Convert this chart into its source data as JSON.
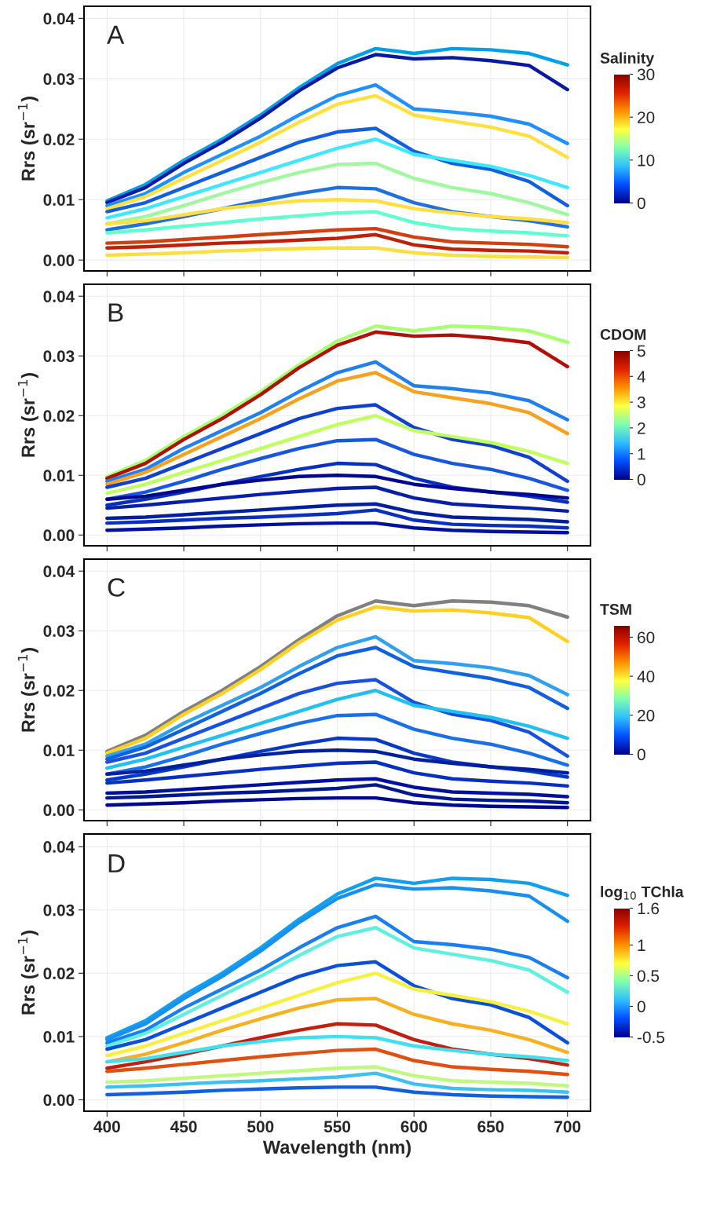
{
  "chart_data": [
    {
      "type": "line",
      "annotations": [
        "A"
      ],
      "ylabel": "Rrs (sr$^{−1}$)",
      "clabel": "Salinity",
      "clim": [
        0,
        30
      ],
      "cticks": [
        0,
        10,
        20,
        30
      ],
      "xlim": [
        385,
        715
      ],
      "xticks": [
        400,
        450,
        500,
        550,
        600,
        650,
        700
      ],
      "ylim": [
        -0.0018,
        0.042
      ],
      "yticks": [
        {
          "value": 0,
          "label": "0.00"
        },
        {
          "value": 0.01,
          "label": "0.01"
        },
        {
          "value": 0.02,
          "label": "0.02"
        },
        {
          "value": 0.03,
          "label": "0.03"
        },
        {
          "value": 0.04,
          "label": "0.04"
        }
      ],
      "grid": true,
      "tick_labels": "y",
      "x": [
        400,
        425,
        450,
        475,
        500,
        525,
        550,
        575,
        600,
        625,
        650,
        675,
        700
      ],
      "series": [
        {
          "color": "#00a0e8",
          "values": [
            0.0098,
            0.0125,
            0.0165,
            0.02,
            0.024,
            0.0285,
            0.0325,
            0.035,
            0.0342,
            0.035,
            0.0348,
            0.0342,
            0.0323
          ]
        },
        {
          "color": "#0a1aa0",
          "values": [
            0.0095,
            0.012,
            0.016,
            0.0195,
            0.0235,
            0.028,
            0.0318,
            0.034,
            0.0333,
            0.0335,
            0.033,
            0.0322,
            0.0282
          ]
        },
        {
          "color": "#1e90ff",
          "values": [
            0.009,
            0.011,
            0.0145,
            0.0175,
            0.0205,
            0.024,
            0.0272,
            0.029,
            0.025,
            0.0245,
            0.0238,
            0.0225,
            0.0193
          ]
        },
        {
          "color": "#ffe040",
          "values": [
            0.0085,
            0.0105,
            0.0135,
            0.0165,
            0.0195,
            0.0228,
            0.0258,
            0.0272,
            0.024,
            0.023,
            0.022,
            0.0205,
            0.017
          ]
        },
        {
          "color": "#1060e0",
          "values": [
            0.008,
            0.0095,
            0.012,
            0.0145,
            0.017,
            0.0195,
            0.0212,
            0.0218,
            0.018,
            0.016,
            0.015,
            0.013,
            0.009
          ]
        },
        {
          "color": "#40e8ff",
          "values": [
            0.007,
            0.0085,
            0.0105,
            0.0125,
            0.0145,
            0.0165,
            0.0185,
            0.02,
            0.0175,
            0.0165,
            0.0155,
            0.014,
            0.012
          ]
        },
        {
          "color": "#a0f8a0",
          "values": [
            0.006,
            0.0072,
            0.009,
            0.011,
            0.0128,
            0.0145,
            0.0158,
            0.016,
            0.0135,
            0.012,
            0.011,
            0.0095,
            0.0075
          ]
        },
        {
          "color": "#2070e0",
          "values": [
            0.005,
            0.006,
            0.0072,
            0.0085,
            0.0098,
            0.011,
            0.012,
            0.0118,
            0.0095,
            0.008,
            0.0072,
            0.0065,
            0.0055
          ]
        },
        {
          "color": "#ffe040",
          "values": [
            0.006,
            0.0065,
            0.0075,
            0.0085,
            0.0092,
            0.0098,
            0.01,
            0.0098,
            0.0085,
            0.0078,
            0.0072,
            0.0068,
            0.0062
          ]
        },
        {
          "color": "#60ffd0",
          "values": [
            0.0045,
            0.005,
            0.0056,
            0.0062,
            0.0068,
            0.0073,
            0.0078,
            0.008,
            0.0062,
            0.0052,
            0.0048,
            0.0045,
            0.004
          ]
        },
        {
          "color": "#d04010",
          "values": [
            0.0028,
            0.003,
            0.0034,
            0.0038,
            0.0042,
            0.0046,
            0.005,
            0.0052,
            0.0038,
            0.003,
            0.0028,
            0.0026,
            0.0022
          ]
        },
        {
          "color": "#c02008",
          "values": [
            0.002,
            0.0022,
            0.0025,
            0.0028,
            0.003,
            0.0033,
            0.0036,
            0.0042,
            0.0025,
            0.0018,
            0.0016,
            0.0015,
            0.0012
          ]
        },
        {
          "color": "#f8e040",
          "values": [
            0.0008,
            0.001,
            0.0012,
            0.0015,
            0.0017,
            0.0019,
            0.002,
            0.002,
            0.0012,
            0.0008,
            0.0006,
            0.0005,
            0.0004
          ]
        }
      ]
    },
    {
      "type": "line",
      "annotations": [
        "B"
      ],
      "ylabel": "Rrs (sr$^{−1}$)",
      "clabel": "CDOM",
      "clim": [
        0,
        5
      ],
      "cticks": [
        0,
        1,
        2,
        3,
        4,
        5
      ],
      "xlim": [
        385,
        715
      ],
      "xticks": [
        400,
        450,
        500,
        550,
        600,
        650,
        700
      ],
      "ylim": [
        -0.0018,
        0.042
      ],
      "yticks": [
        {
          "value": 0,
          "label": "0.00"
        },
        {
          "value": 0.01,
          "label": "0.01"
        },
        {
          "value": 0.02,
          "label": "0.02"
        },
        {
          "value": 0.03,
          "label": "0.03"
        },
        {
          "value": 0.04,
          "label": "0.04"
        }
      ],
      "grid": true,
      "tick_labels": "y",
      "x": [
        400,
        425,
        450,
        475,
        500,
        525,
        550,
        575,
        600,
        625,
        650,
        675,
        700
      ],
      "series": [
        {
          "color": "#a8ff70",
          "values": [
            0.0098,
            0.0125,
            0.0165,
            0.02,
            0.024,
            0.0285,
            0.0325,
            0.035,
            0.0342,
            0.035,
            0.0348,
            0.0342,
            0.0323
          ]
        },
        {
          "color": "#b01008",
          "values": [
            0.0095,
            0.012,
            0.016,
            0.0195,
            0.0235,
            0.028,
            0.0318,
            0.034,
            0.0333,
            0.0335,
            0.033,
            0.0322,
            0.0282
          ]
        },
        {
          "color": "#2080f0",
          "values": [
            0.009,
            0.011,
            0.0145,
            0.0175,
            0.0205,
            0.024,
            0.0272,
            0.029,
            0.025,
            0.0245,
            0.0238,
            0.0225,
            0.0193
          ]
        },
        {
          "color": "#f8a020",
          "values": [
            0.0085,
            0.0105,
            0.0135,
            0.0165,
            0.0195,
            0.0228,
            0.0258,
            0.0272,
            0.024,
            0.023,
            0.022,
            0.0205,
            0.017
          ]
        },
        {
          "color": "#1040d0",
          "values": [
            0.008,
            0.0095,
            0.012,
            0.0145,
            0.017,
            0.0195,
            0.0212,
            0.0218,
            0.018,
            0.016,
            0.015,
            0.013,
            0.009
          ]
        },
        {
          "color": "#c0ff60",
          "values": [
            0.007,
            0.0085,
            0.0105,
            0.0125,
            0.0145,
            0.0165,
            0.0185,
            0.02,
            0.0175,
            0.0165,
            0.0155,
            0.014,
            0.012
          ]
        },
        {
          "color": "#1858e0",
          "values": [
            0.006,
            0.0072,
            0.009,
            0.011,
            0.0128,
            0.0145,
            0.0158,
            0.016,
            0.0135,
            0.012,
            0.011,
            0.0095,
            0.0075
          ]
        },
        {
          "color": "#0830c0",
          "values": [
            0.005,
            0.006,
            0.0072,
            0.0085,
            0.0098,
            0.011,
            0.012,
            0.0118,
            0.0095,
            0.008,
            0.0072,
            0.0065,
            0.0055
          ]
        },
        {
          "color": "#000890",
          "values": [
            0.006,
            0.0065,
            0.0075,
            0.0085,
            0.0092,
            0.0098,
            0.01,
            0.0098,
            0.0085,
            0.0078,
            0.0072,
            0.0068,
            0.0062
          ]
        },
        {
          "color": "#0820a8",
          "values": [
            0.0045,
            0.005,
            0.0056,
            0.0062,
            0.0068,
            0.0073,
            0.0078,
            0.008,
            0.0062,
            0.0052,
            0.0048,
            0.0045,
            0.004
          ]
        },
        {
          "color": "#0020a0",
          "values": [
            0.0028,
            0.003,
            0.0034,
            0.0038,
            0.0042,
            0.0046,
            0.005,
            0.0052,
            0.0038,
            0.003,
            0.0028,
            0.0026,
            0.0022
          ]
        },
        {
          "color": "#0a30c0",
          "values": [
            0.002,
            0.0022,
            0.0025,
            0.0028,
            0.003,
            0.0033,
            0.0036,
            0.0042,
            0.0025,
            0.0018,
            0.0016,
            0.0015,
            0.0012
          ]
        },
        {
          "color": "#0010a0",
          "values": [
            0.0008,
            0.001,
            0.0012,
            0.0015,
            0.0017,
            0.0019,
            0.002,
            0.002,
            0.0012,
            0.0008,
            0.0006,
            0.0005,
            0.0004
          ]
        }
      ]
    },
    {
      "type": "line",
      "annotations": [
        "C"
      ],
      "ylabel": "Rrs (sr$^{−1}$)",
      "clabel": "TSM",
      "clim": [
        0,
        66
      ],
      "cticks": [
        0,
        20,
        40,
        60
      ],
      "xlim": [
        385,
        715
      ],
      "xticks": [
        400,
        450,
        500,
        550,
        600,
        650,
        700
      ],
      "ylim": [
        -0.0018,
        0.042
      ],
      "yticks": [
        {
          "value": 0,
          "label": "0.00"
        },
        {
          "value": 0.01,
          "label": "0.01"
        },
        {
          "value": 0.02,
          "label": "0.02"
        },
        {
          "value": 0.03,
          "label": "0.03"
        },
        {
          "value": 0.04,
          "label": "0.04"
        }
      ],
      "grid": true,
      "tick_labels": "y",
      "x": [
        400,
        425,
        450,
        475,
        500,
        525,
        550,
        575,
        600,
        625,
        650,
        675,
        700
      ],
      "series": [
        {
          "color": "#808080",
          "values": [
            0.0098,
            0.0125,
            0.0165,
            0.02,
            0.024,
            0.0285,
            0.0325,
            0.035,
            0.0342,
            0.035,
            0.0348,
            0.0342,
            0.0323
          ]
        },
        {
          "color": "#ffd020",
          "values": [
            0.0095,
            0.012,
            0.016,
            0.0195,
            0.0235,
            0.028,
            0.0318,
            0.034,
            0.0333,
            0.0335,
            0.033,
            0.0322,
            0.0282
          ]
        },
        {
          "color": "#30a0f0",
          "values": [
            0.009,
            0.011,
            0.0145,
            0.0175,
            0.0205,
            0.024,
            0.0272,
            0.029,
            0.025,
            0.0245,
            0.0238,
            0.0225,
            0.0193
          ]
        },
        {
          "color": "#1060e0",
          "values": [
            0.0085,
            0.0105,
            0.0135,
            0.0165,
            0.0195,
            0.0228,
            0.0258,
            0.0272,
            0.024,
            0.023,
            0.022,
            0.0205,
            0.017
          ]
        },
        {
          "color": "#1850e0",
          "values": [
            0.008,
            0.0095,
            0.012,
            0.0145,
            0.017,
            0.0195,
            0.0212,
            0.0218,
            0.018,
            0.016,
            0.015,
            0.013,
            0.009
          ]
        },
        {
          "color": "#20c0f0",
          "values": [
            0.007,
            0.0085,
            0.0105,
            0.0125,
            0.0145,
            0.0165,
            0.0185,
            0.02,
            0.0175,
            0.0165,
            0.0155,
            0.014,
            0.012
          ]
        },
        {
          "color": "#1a70e8",
          "values": [
            0.006,
            0.0072,
            0.009,
            0.011,
            0.0128,
            0.0145,
            0.0158,
            0.016,
            0.0135,
            0.012,
            0.011,
            0.0095,
            0.0075
          ]
        },
        {
          "color": "#0838c8",
          "values": [
            0.005,
            0.006,
            0.0072,
            0.0085,
            0.0098,
            0.011,
            0.012,
            0.0118,
            0.0095,
            0.008,
            0.0072,
            0.0065,
            0.0055
          ]
        },
        {
          "color": "#0020a0",
          "values": [
            0.006,
            0.0065,
            0.0075,
            0.0085,
            0.0092,
            0.0098,
            0.01,
            0.0098,
            0.0085,
            0.0078,
            0.0072,
            0.0068,
            0.0062
          ]
        },
        {
          "color": "#0830c0",
          "values": [
            0.0045,
            0.005,
            0.0056,
            0.0062,
            0.0068,
            0.0073,
            0.0078,
            0.008,
            0.0062,
            0.0052,
            0.0048,
            0.0045,
            0.004
          ]
        },
        {
          "color": "#0010a0",
          "values": [
            0.0028,
            0.003,
            0.0034,
            0.0038,
            0.0042,
            0.0046,
            0.005,
            0.0052,
            0.0038,
            0.003,
            0.0028,
            0.0026,
            0.0022
          ]
        },
        {
          "color": "#001890",
          "values": [
            0.002,
            0.0022,
            0.0025,
            0.0028,
            0.003,
            0.0033,
            0.0036,
            0.0042,
            0.0025,
            0.0018,
            0.0016,
            0.0015,
            0.0012
          ]
        },
        {
          "color": "#000890",
          "values": [
            0.0008,
            0.001,
            0.0012,
            0.0015,
            0.0017,
            0.0019,
            0.002,
            0.002,
            0.0012,
            0.0008,
            0.0006,
            0.0005,
            0.0004
          ]
        }
      ]
    },
    {
      "type": "line",
      "annotations": [
        "D"
      ],
      "ylabel": "Rrs (sr$^{−1}$)",
      "xlabel": "Wavelength (nm)",
      "clabel": "log$_{10}$ TChla",
      "clim": [
        -0.5,
        1.6
      ],
      "cticks": [
        {
          "value": -0.5,
          "label": "-0.5"
        },
        0,
        0.5,
        1,
        1.6
      ],
      "xlim": [
        385,
        715
      ],
      "xticks": [
        400,
        450,
        500,
        550,
        600,
        650,
        700
      ],
      "ylim": [
        -0.0018,
        0.042
      ],
      "yticks": [
        {
          "value": 0,
          "label": "0.00"
        },
        {
          "value": 0.01,
          "label": "0.01"
        },
        {
          "value": 0.02,
          "label": "0.02"
        },
        {
          "value": 0.03,
          "label": "0.03"
        },
        {
          "value": 0.04,
          "label": "0.04"
        }
      ],
      "grid": true,
      "x": [
        400,
        425,
        450,
        475,
        500,
        525,
        550,
        575,
        600,
        625,
        650,
        675,
        700
      ],
      "series": [
        {
          "color": "#10a0f0",
          "values": [
            0.0098,
            0.0125,
            0.0165,
            0.02,
            0.024,
            0.0285,
            0.0325,
            0.035,
            0.0342,
            0.035,
            0.0348,
            0.0342,
            0.0323
          ]
        },
        {
          "color": "#1890f0",
          "values": [
            0.0095,
            0.012,
            0.016,
            0.0195,
            0.0235,
            0.028,
            0.0318,
            0.034,
            0.0333,
            0.0335,
            0.033,
            0.0322,
            0.0282
          ]
        },
        {
          "color": "#1880f0",
          "values": [
            0.009,
            0.011,
            0.0145,
            0.0175,
            0.0205,
            0.024,
            0.0272,
            0.029,
            0.025,
            0.0245,
            0.0238,
            0.0225,
            0.0193
          ]
        },
        {
          "color": "#60f0e0",
          "values": [
            0.0085,
            0.0105,
            0.0135,
            0.0165,
            0.0195,
            0.0228,
            0.0258,
            0.0272,
            0.024,
            0.023,
            0.022,
            0.0205,
            0.017
          ]
        },
        {
          "color": "#0a50d8",
          "values": [
            0.008,
            0.0095,
            0.012,
            0.0145,
            0.017,
            0.0195,
            0.0212,
            0.0218,
            0.018,
            0.016,
            0.015,
            0.013,
            0.009
          ]
        },
        {
          "color": "#f8f040",
          "values": [
            0.007,
            0.0085,
            0.0105,
            0.0125,
            0.0145,
            0.0165,
            0.0185,
            0.02,
            0.0175,
            0.0165,
            0.0155,
            0.014,
            0.012
          ]
        },
        {
          "color": "#f8b020",
          "values": [
            0.006,
            0.0072,
            0.009,
            0.011,
            0.0128,
            0.0145,
            0.0158,
            0.016,
            0.0135,
            0.012,
            0.011,
            0.0095,
            0.0075
          ]
        },
        {
          "color": "#c02010",
          "values": [
            0.005,
            0.006,
            0.0072,
            0.0085,
            0.0098,
            0.011,
            0.012,
            0.0118,
            0.0095,
            0.008,
            0.0072,
            0.0065,
            0.0055
          ]
        },
        {
          "color": "#40e0f0",
          "values": [
            0.006,
            0.0065,
            0.0075,
            0.0085,
            0.0092,
            0.0098,
            0.01,
            0.0098,
            0.0085,
            0.0078,
            0.0072,
            0.0068,
            0.0062
          ]
        },
        {
          "color": "#e05010",
          "values": [
            0.0045,
            0.005,
            0.0056,
            0.0062,
            0.0068,
            0.0073,
            0.0078,
            0.008,
            0.0062,
            0.0052,
            0.0048,
            0.0045,
            0.004
          ]
        },
        {
          "color": "#c0f880",
          "values": [
            0.0028,
            0.003,
            0.0034,
            0.0038,
            0.0042,
            0.0046,
            0.005,
            0.0052,
            0.0038,
            0.003,
            0.0028,
            0.0026,
            0.0022
          ]
        },
        {
          "color": "#40c0f0",
          "values": [
            0.002,
            0.0022,
            0.0025,
            0.0028,
            0.003,
            0.0033,
            0.0036,
            0.0042,
            0.0025,
            0.0018,
            0.0016,
            0.0015,
            0.0012
          ]
        },
        {
          "color": "#1060e0",
          "values": [
            0.0008,
            0.001,
            0.0012,
            0.0015,
            0.0017,
            0.0019,
            0.002,
            0.002,
            0.0012,
            0.0008,
            0.0006,
            0.0005,
            0.0004
          ]
        }
      ]
    }
  ]
}
